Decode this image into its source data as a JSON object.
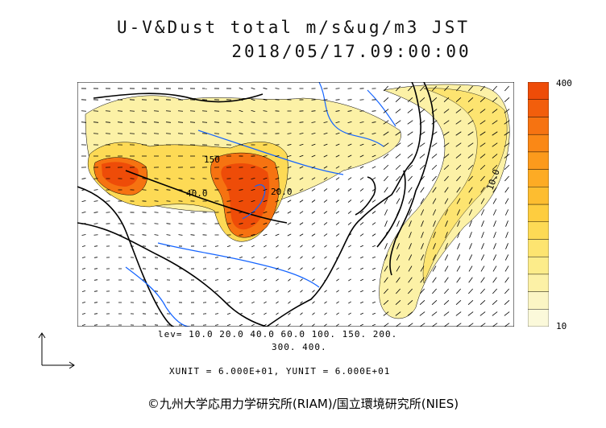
{
  "header": {
    "title": "U-V&Dust total m/s&ug/m3 JST",
    "datetime": "2018/05/17.09:00:00"
  },
  "colorbar": {
    "max_label": "400",
    "min_label": "10",
    "colors": [
      "#fbf9da",
      "#fbf5c4",
      "#fcf1a6",
      "#fcec8a",
      "#fde470",
      "#fdda55",
      "#fecd3f",
      "#fdbd30",
      "#fdab24",
      "#fc9a1c",
      "#fa8816",
      "#f67311",
      "#f25e0c",
      "#ee4c08"
    ]
  },
  "legend": {
    "levels_line1": "lev= 10.0 20.0 40.0 60.0 100. 150. 200.",
    "levels_line2": "300. 400.",
    "units": "XUNIT = 6.000E+01, YUNIT = 6.000E+01"
  },
  "map": {
    "contour_labels": [
      "150",
      "40.0",
      "20.0",
      "10.0"
    ],
    "colors": {
      "coast": "#000000",
      "rivers": "#1464ff",
      "contour": "#000000"
    }
  },
  "footer": {
    "copyright": "©九州大学応用力学研究所(RIAM)/国立環境研究所(NIES)"
  }
}
